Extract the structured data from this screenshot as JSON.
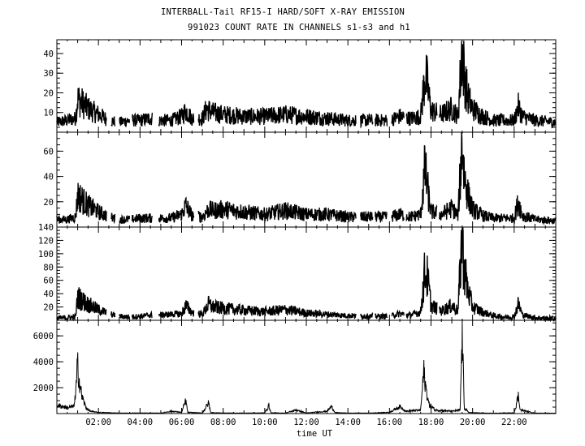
{
  "title": "INTERBALL-Tail RF15-I HARD/SOFT X-RAY EMISSION",
  "subtitle": "991023  COUNT RATE IN CHANNELS s1-s3 and h1",
  "chart_data": {
    "type": "line",
    "xlabel": "time UT",
    "x_tick_labels": [
      "02:00",
      "04:00",
      "06:00",
      "08:00",
      "10:00",
      "12:00",
      "14:00",
      "16:00",
      "18:00",
      "20:00",
      "22:00"
    ],
    "xlim": [
      0,
      24
    ],
    "panels": [
      {
        "name": "s1",
        "ylim": [
          0,
          47
        ],
        "yticks": [
          10,
          20,
          30,
          40
        ],
        "ytick_labels": [
          "10",
          "20",
          "30",
          "40"
        ],
        "points": [
          [
            0,
            5
          ],
          [
            0.5,
            6
          ],
          [
            0.9,
            7
          ],
          [
            1.0,
            17
          ],
          [
            1.2,
            15
          ],
          [
            1.5,
            12
          ],
          [
            2.0,
            9
          ],
          [
            2.5,
            6
          ],
          [
            3.0,
            5
          ],
          [
            3.5,
            6
          ],
          [
            4.0,
            6
          ],
          [
            4.5,
            7
          ],
          [
            5.0,
            6
          ],
          [
            5.5,
            6
          ],
          [
            6.0,
            8
          ],
          [
            6.2,
            11
          ],
          [
            6.5,
            7
          ],
          [
            7.0,
            7
          ],
          [
            7.2,
            12
          ],
          [
            7.5,
            10
          ],
          [
            8.0,
            9
          ],
          [
            9.0,
            8
          ],
          [
            10.0,
            8
          ],
          [
            11.0,
            9
          ],
          [
            12.0,
            8
          ],
          [
            13.0,
            7
          ],
          [
            14.0,
            6
          ],
          [
            15.0,
            6
          ],
          [
            16.0,
            6
          ],
          [
            16.5,
            8
          ],
          [
            17.0,
            7
          ],
          [
            17.5,
            8
          ],
          [
            17.7,
            28
          ],
          [
            17.8,
            26
          ],
          [
            17.9,
            18
          ],
          [
            18.0,
            11
          ],
          [
            18.5,
            9
          ],
          [
            19.0,
            12
          ],
          [
            19.3,
            8
          ],
          [
            19.5,
            44
          ],
          [
            19.6,
            28
          ],
          [
            19.8,
            17
          ],
          [
            20.0,
            12
          ],
          [
            20.5,
            8
          ],
          [
            21.0,
            6
          ],
          [
            21.5,
            6
          ],
          [
            22.0,
            6
          ],
          [
            22.2,
            13
          ],
          [
            22.4,
            8
          ],
          [
            23.0,
            6
          ],
          [
            24,
            5
          ]
        ],
        "gaps": [
          [
            2.4,
            2.6
          ],
          [
            2.8,
            3.0
          ],
          [
            3.5,
            3.6
          ],
          [
            4.6,
            4.9
          ],
          [
            6.6,
            6.8
          ],
          [
            14.4,
            14.6
          ],
          [
            15.2,
            15.3
          ],
          [
            15.9,
            16.1
          ],
          [
            16.7,
            16.8
          ],
          [
            18.3,
            18.4
          ]
        ]
      },
      {
        "name": "s2",
        "ylim": [
          0,
          75
        ],
        "yticks": [
          20,
          40,
          60
        ],
        "ytick_labels": [
          "20",
          "40",
          "60"
        ],
        "points": [
          [
            0,
            6
          ],
          [
            0.5,
            6
          ],
          [
            0.9,
            8
          ],
          [
            1.0,
            25
          ],
          [
            1.2,
            22
          ],
          [
            1.5,
            17
          ],
          [
            2.0,
            12
          ],
          [
            2.5,
            8
          ],
          [
            3.0,
            6
          ],
          [
            3.5,
            6
          ],
          [
            4.0,
            7
          ],
          [
            4.5,
            7
          ],
          [
            5.0,
            7
          ],
          [
            5.5,
            7
          ],
          [
            6.0,
            10
          ],
          [
            6.2,
            17
          ],
          [
            6.5,
            9
          ],
          [
            7.0,
            8
          ],
          [
            7.3,
            14
          ],
          [
            7.5,
            13
          ],
          [
            8.0,
            14
          ],
          [
            9.0,
            12
          ],
          [
            10.0,
            10
          ],
          [
            11.0,
            13
          ],
          [
            12.0,
            10
          ],
          [
            13.0,
            10
          ],
          [
            14.0,
            8
          ],
          [
            15.0,
            8
          ],
          [
            16.0,
            8
          ],
          [
            16.5,
            10
          ],
          [
            17.0,
            8
          ],
          [
            17.5,
            10
          ],
          [
            17.7,
            45
          ],
          [
            17.8,
            35
          ],
          [
            17.9,
            22
          ],
          [
            18.0,
            12
          ],
          [
            18.5,
            10
          ],
          [
            19.0,
            15
          ],
          [
            19.3,
            9
          ],
          [
            19.5,
            70
          ],
          [
            19.6,
            40
          ],
          [
            19.8,
            24
          ],
          [
            20.0,
            14
          ],
          [
            20.5,
            9
          ],
          [
            21.0,
            7
          ],
          [
            21.5,
            7
          ],
          [
            22.0,
            7
          ],
          [
            22.2,
            20
          ],
          [
            22.4,
            9
          ],
          [
            23.0,
            6
          ],
          [
            24,
            5
          ]
        ],
        "gaps": [
          [
            2.4,
            2.6
          ],
          [
            2.8,
            3.0
          ],
          [
            3.5,
            3.6
          ],
          [
            4.6,
            4.9
          ],
          [
            6.6,
            6.8
          ],
          [
            14.4,
            14.6
          ],
          [
            15.2,
            15.3
          ],
          [
            15.9,
            16.1
          ],
          [
            16.7,
            16.8
          ],
          [
            18.3,
            18.4
          ]
        ]
      },
      {
        "name": "s3",
        "ylim": [
          0,
          140
        ],
        "yticks": [
          20,
          40,
          60,
          80,
          100,
          120,
          140
        ],
        "ytick_labels": [
          "20",
          "40",
          "60",
          "80",
          "100",
          "120",
          "140"
        ],
        "points": [
          [
            0,
            3
          ],
          [
            0.5,
            4
          ],
          [
            0.9,
            5
          ],
          [
            1.0,
            35
          ],
          [
            1.2,
            30
          ],
          [
            1.5,
            24
          ],
          [
            2.0,
            16
          ],
          [
            2.5,
            10
          ],
          [
            3.0,
            6
          ],
          [
            3.5,
            5
          ],
          [
            4.0,
            6
          ],
          [
            4.5,
            8
          ],
          [
            5.0,
            8
          ],
          [
            5.5,
            9
          ],
          [
            6.0,
            10
          ],
          [
            6.2,
            22
          ],
          [
            6.5,
            12
          ],
          [
            7.0,
            9
          ],
          [
            7.3,
            24
          ],
          [
            7.5,
            20
          ],
          [
            8.0,
            18
          ],
          [
            9.0,
            15
          ],
          [
            10.0,
            13
          ],
          [
            11.0,
            16
          ],
          [
            12.0,
            11
          ],
          [
            13.0,
            9
          ],
          [
            14.0,
            7
          ],
          [
            15.0,
            6
          ],
          [
            16.0,
            6
          ],
          [
            16.5,
            10
          ],
          [
            17.0,
            8
          ],
          [
            17.5,
            12
          ],
          [
            17.7,
            72
          ],
          [
            17.8,
            68
          ],
          [
            17.9,
            48
          ],
          [
            18.0,
            22
          ],
          [
            18.5,
            14
          ],
          [
            19.0,
            22
          ],
          [
            19.3,
            14
          ],
          [
            19.5,
            138
          ],
          [
            19.6,
            75
          ],
          [
            19.8,
            42
          ],
          [
            20.0,
            20
          ],
          [
            20.5,
            12
          ],
          [
            21.0,
            7
          ],
          [
            21.5,
            5
          ],
          [
            22.0,
            5
          ],
          [
            22.2,
            25
          ],
          [
            22.4,
            8
          ],
          [
            23.0,
            4
          ],
          [
            24,
            2
          ]
        ],
        "gaps": [
          [
            2.4,
            2.6
          ],
          [
            2.8,
            3.0
          ],
          [
            3.5,
            3.6
          ],
          [
            4.6,
            4.9
          ],
          [
            6.6,
            6.8
          ],
          [
            14.4,
            14.6
          ],
          [
            15.2,
            15.3
          ],
          [
            15.9,
            16.1
          ],
          [
            16.7,
            16.8
          ],
          [
            18.3,
            18.4
          ]
        ]
      },
      {
        "name": "h1",
        "ylim": [
          0,
          7200
        ],
        "yticks": [
          2000,
          4000,
          6000
        ],
        "ytick_labels": [
          "2000",
          "4000",
          "6000"
        ],
        "points": [
          [
            0,
            700
          ],
          [
            0.3,
            600
          ],
          [
            0.5,
            500
          ],
          [
            0.8,
            600
          ],
          [
            0.9,
            1500
          ],
          [
            1.0,
            4300
          ],
          [
            1.05,
            3100
          ],
          [
            1.2,
            1500
          ],
          [
            1.4,
            500
          ],
          [
            1.6,
            200
          ],
          [
            2.0,
            100
          ],
          [
            3.0,
            40
          ],
          [
            4.0,
            50
          ],
          [
            5.0,
            40
          ],
          [
            5.5,
            200
          ],
          [
            6.0,
            100
          ],
          [
            6.2,
            1100
          ],
          [
            6.3,
            100
          ],
          [
            7.0,
            50
          ],
          [
            7.3,
            900
          ],
          [
            7.4,
            80
          ],
          [
            8.0,
            50
          ],
          [
            9.0,
            40
          ],
          [
            10.0,
            60
          ],
          [
            10.2,
            700
          ],
          [
            10.3,
            60
          ],
          [
            11.0,
            40
          ],
          [
            11.5,
            300
          ],
          [
            12.0,
            50
          ],
          [
            13.0,
            200
          ],
          [
            13.2,
            600
          ],
          [
            13.4,
            80
          ],
          [
            14.0,
            40
          ],
          [
            15.0,
            40
          ],
          [
            16.0,
            100
          ],
          [
            16.5,
            600
          ],
          [
            16.8,
            200
          ],
          [
            17.5,
            300
          ],
          [
            17.65,
            3600
          ],
          [
            17.75,
            2200
          ],
          [
            17.9,
            800
          ],
          [
            18.2,
            300
          ],
          [
            19.0,
            200
          ],
          [
            19.4,
            300
          ],
          [
            19.5,
            6800
          ],
          [
            19.6,
            500
          ],
          [
            19.8,
            100
          ],
          [
            20.5,
            40
          ],
          [
            21.0,
            30
          ],
          [
            22.0,
            60
          ],
          [
            22.2,
            1500
          ],
          [
            22.3,
            300
          ],
          [
            23.0,
            40
          ],
          [
            24,
            30
          ]
        ],
        "gaps": []
      }
    ]
  }
}
